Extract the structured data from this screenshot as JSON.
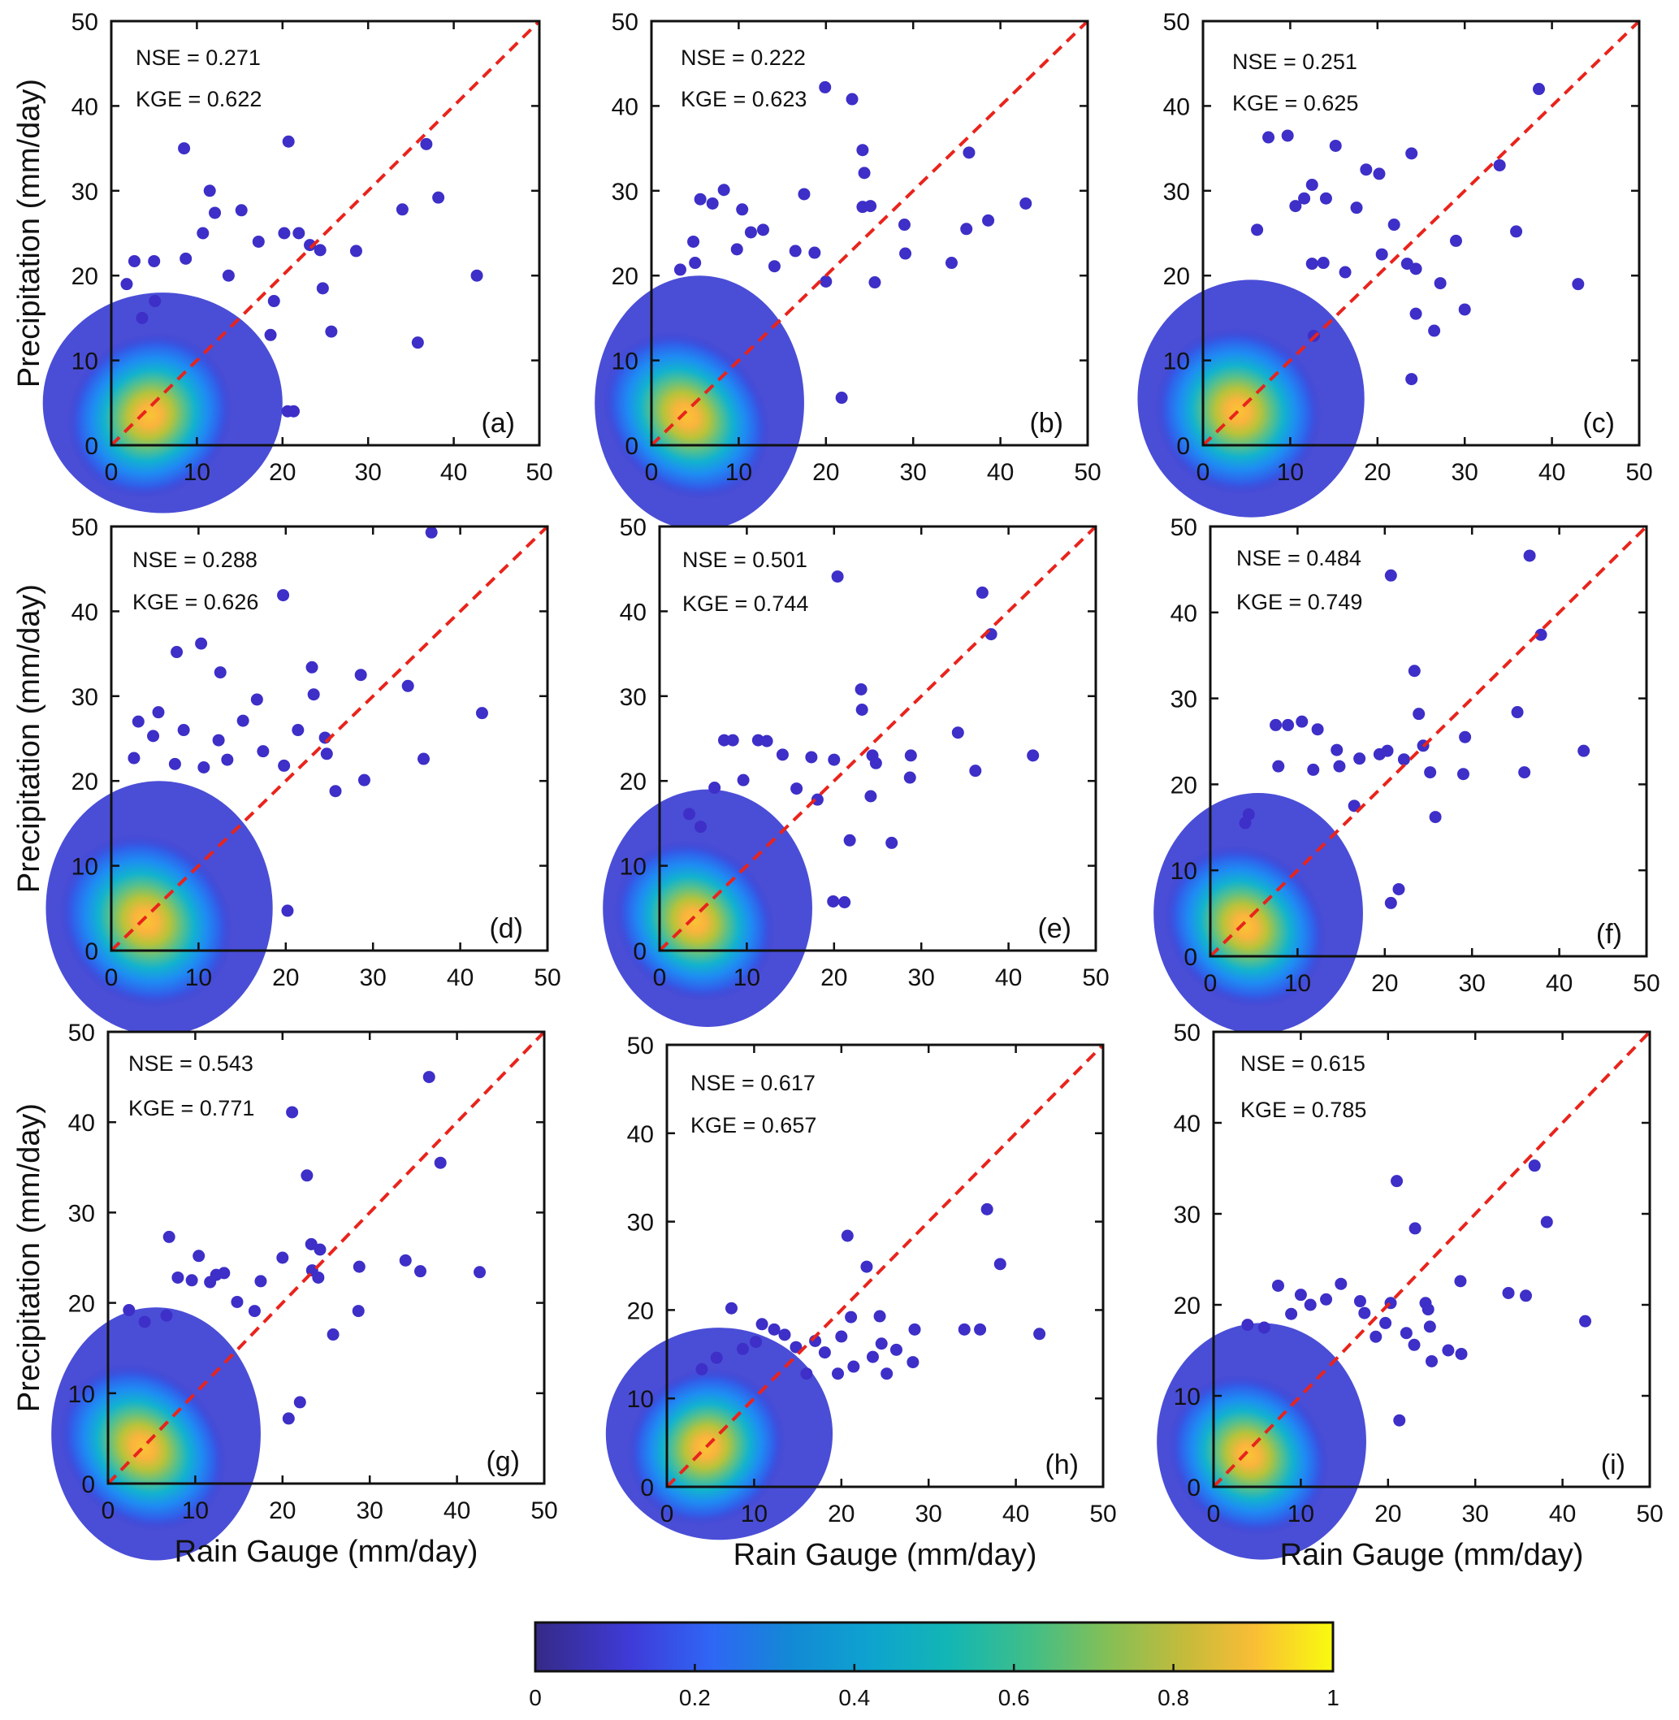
{
  "figure": {
    "shared": {
      "xlabel": "Rain Gauge (mm/day)",
      "ylabel": "Precipitation (mm/day)",
      "xlim": [
        0,
        50
      ],
      "ylim": [
        0,
        50
      ],
      "ticks": [
        0,
        10,
        20,
        30,
        40,
        50
      ],
      "reference_line": "1:1 line",
      "colors": {
        "reference_line": "#e8241c",
        "axes": "#111111",
        "low_density": "#3d2fc7"
      }
    },
    "colorbar": {
      "ticks": [
        "0",
        "0.2",
        "0.4",
        "0.6",
        "0.8",
        "1"
      ],
      "colormap": "parula"
    }
  },
  "chart_data": [
    {
      "type": "scatter",
      "panel": "(a)",
      "nse_label": "NSE = 0.271",
      "kge_label": "KGE = 0.622",
      "xlim": [
        0,
        50
      ],
      "ylim": [
        0,
        50
      ],
      "points": [
        [
          8.5,
          35
        ],
        [
          20.7,
          35.8
        ],
        [
          36.8,
          35.5
        ],
        [
          34,
          27.8
        ],
        [
          38.2,
          29.2
        ],
        [
          42.7,
          20
        ],
        [
          35.8,
          12.1
        ],
        [
          11.5,
          30
        ],
        [
          12.1,
          27.4
        ],
        [
          15.2,
          27.7
        ],
        [
          10.7,
          25
        ],
        [
          17.2,
          24
        ],
        [
          20.2,
          25
        ],
        [
          21.9,
          25
        ],
        [
          23.2,
          23.6
        ],
        [
          24.4,
          23
        ],
        [
          28.6,
          22.9
        ],
        [
          24.7,
          18.5
        ],
        [
          25.7,
          13.4
        ],
        [
          20.6,
          4
        ],
        [
          21.3,
          4
        ],
        [
          2.7,
          21.7
        ],
        [
          1.8,
          19
        ],
        [
          5,
          21.7
        ],
        [
          8.7,
          22
        ],
        [
          3.6,
          15
        ],
        [
          5.1,
          17
        ],
        [
          13.7,
          20
        ],
        [
          19,
          17
        ],
        [
          18.6,
          13
        ]
      ]
    },
    {
      "type": "scatter",
      "panel": "(b)",
      "nse_label": "NSE = 0.222",
      "kge_label": "KGE = 0.623",
      "xlim": [
        0,
        50
      ],
      "ylim": [
        0,
        50
      ],
      "points": [
        [
          19.9,
          42.2
        ],
        [
          23,
          40.8
        ],
        [
          24.2,
          34.8
        ],
        [
          36.4,
          34.5
        ],
        [
          24.4,
          32.1
        ],
        [
          17.5,
          29.6
        ],
        [
          8.3,
          30.1
        ],
        [
          5.6,
          29
        ],
        [
          7,
          28.5
        ],
        [
          24.2,
          28.1
        ],
        [
          25.1,
          28.2
        ],
        [
          38.6,
          26.5
        ],
        [
          42.9,
          28.5
        ],
        [
          29,
          26
        ],
        [
          36.1,
          25.5
        ],
        [
          34.4,
          21.5
        ],
        [
          29.1,
          22.6
        ],
        [
          25.6,
          19.2
        ],
        [
          21.8,
          5.6
        ],
        [
          20,
          19.3
        ],
        [
          9.8,
          23.1
        ],
        [
          12.8,
          25.4
        ],
        [
          16.5,
          22.9
        ],
        [
          18.7,
          22.7
        ],
        [
          14.1,
          21.1
        ],
        [
          3.3,
          20.7
        ],
        [
          5,
          21.5
        ],
        [
          4.8,
          24
        ],
        [
          10.4,
          27.8
        ],
        [
          11.4,
          25.1
        ]
      ]
    },
    {
      "type": "scatter",
      "panel": "(c)",
      "nse_label": "NSE = 0.251",
      "kge_label": "KGE = 0.625",
      "xlim": [
        0,
        50
      ],
      "ylim": [
        0,
        50
      ],
      "points": [
        [
          38.5,
          42
        ],
        [
          9.7,
          36.5
        ],
        [
          7.5,
          36.3
        ],
        [
          34,
          33
        ],
        [
          18.7,
          32.5
        ],
        [
          20.2,
          32
        ],
        [
          23.9,
          34.4
        ],
        [
          15.2,
          35.3
        ],
        [
          10.6,
          28.2
        ],
        [
          11.6,
          29.1
        ],
        [
          12.5,
          30.7
        ],
        [
          14.1,
          29.1
        ],
        [
          17.6,
          28
        ],
        [
          21.9,
          26
        ],
        [
          29,
          24.1
        ],
        [
          23.4,
          21.4
        ],
        [
          30,
          16
        ],
        [
          35.9,
          25.2
        ],
        [
          43,
          19
        ],
        [
          26.5,
          13.5
        ],
        [
          24.4,
          15.5
        ],
        [
          24.4,
          20.8
        ],
        [
          20.5,
          22.5
        ],
        [
          13.8,
          21.5
        ],
        [
          6.2,
          25.4
        ],
        [
          16.3,
          20.4
        ],
        [
          27.2,
          19.1
        ],
        [
          12.7,
          12.9
        ],
        [
          23.9,
          7.8
        ],
        [
          12.5,
          21.4
        ]
      ]
    },
    {
      "type": "scatter",
      "panel": "(d)",
      "nse_label": "NSE = 0.288",
      "kge_label": "KGE = 0.626",
      "xlim": [
        0,
        50
      ],
      "ylim": [
        0,
        50
      ],
      "points": [
        [
          36.7,
          49.3
        ],
        [
          19.7,
          41.9
        ],
        [
          10.3,
          36.2
        ],
        [
          7.5,
          35.2
        ],
        [
          12.5,
          32.8
        ],
        [
          23,
          33.4
        ],
        [
          28.6,
          32.5
        ],
        [
          34,
          31.2
        ],
        [
          23.2,
          30.2
        ],
        [
          15.1,
          27.1
        ],
        [
          16.7,
          29.6
        ],
        [
          3.1,
          27
        ],
        [
          5.4,
          28.1
        ],
        [
          42.5,
          28
        ],
        [
          24.5,
          25.1
        ],
        [
          24.7,
          23.2
        ],
        [
          35.8,
          22.6
        ],
        [
          29,
          20.1
        ],
        [
          25.7,
          18.8
        ],
        [
          20.2,
          4.7
        ],
        [
          2.6,
          22.7
        ],
        [
          4.8,
          25.3
        ],
        [
          8.3,
          26
        ],
        [
          12.3,
          24.8
        ],
        [
          21.4,
          26
        ],
        [
          19.8,
          21.8
        ],
        [
          17.4,
          23.5
        ],
        [
          13.3,
          22.5
        ],
        [
          7.3,
          22
        ],
        [
          10.6,
          21.6
        ]
      ]
    },
    {
      "type": "scatter",
      "panel": "(e)",
      "nse_label": "NSE = 0.501",
      "kge_label": "KGE = 0.744",
      "xlim": [
        0,
        50
      ],
      "ylim": [
        0,
        50
      ],
      "points": [
        [
          20.4,
          44.1
        ],
        [
          37,
          42.2
        ],
        [
          38,
          37.3
        ],
        [
          23.1,
          30.8
        ],
        [
          23.2,
          28.4
        ],
        [
          34.2,
          25.7
        ],
        [
          7.4,
          24.8
        ],
        [
          8.4,
          24.8
        ],
        [
          11.3,
          24.8
        ],
        [
          12.3,
          24.7
        ],
        [
          28.8,
          23
        ],
        [
          42.8,
          23
        ],
        [
          36.2,
          21.2
        ],
        [
          24.4,
          23
        ],
        [
          24.8,
          22.1
        ],
        [
          28.7,
          20.4
        ],
        [
          24.2,
          18.2
        ],
        [
          26.6,
          12.7
        ],
        [
          19.9,
          5.8
        ],
        [
          21.2,
          5.7
        ],
        [
          17.4,
          22.8
        ],
        [
          20,
          22.5
        ],
        [
          14.1,
          23.1
        ],
        [
          9.6,
          20.1
        ],
        [
          6.3,
          19.2
        ],
        [
          3.4,
          16.1
        ],
        [
          4.7,
          14.6
        ],
        [
          18.1,
          17.8
        ],
        [
          15.7,
          19.1
        ],
        [
          21.8,
          13
        ]
      ]
    },
    {
      "type": "scatter",
      "panel": "(f)",
      "nse_label": "NSE = 0.484",
      "kge_label": "KGE = 0.749",
      "xlim": [
        0,
        50
      ],
      "ylim": [
        0,
        50
      ],
      "points": [
        [
          20.7,
          44.3
        ],
        [
          36.6,
          46.6
        ],
        [
          37.9,
          37.4
        ],
        [
          23.4,
          33.2
        ],
        [
          35.2,
          28.4
        ],
        [
          7.5,
          26.9
        ],
        [
          8.9,
          26.9
        ],
        [
          10.5,
          27.3
        ],
        [
          12.3,
          26.4
        ],
        [
          23.9,
          28.2
        ],
        [
          29.2,
          25.5
        ],
        [
          36,
          21.4
        ],
        [
          42.8,
          23.9
        ],
        [
          29,
          21.2
        ],
        [
          25.2,
          21.4
        ],
        [
          25.8,
          16.2
        ],
        [
          20.7,
          6.2
        ],
        [
          21.6,
          7.8
        ],
        [
          19.4,
          23.5
        ],
        [
          20.3,
          23.9
        ],
        [
          17.1,
          23
        ],
        [
          14.5,
          24
        ],
        [
          7.8,
          22.1
        ],
        [
          4.4,
          16.5
        ],
        [
          4,
          15.5
        ],
        [
          14.8,
          22.1
        ],
        [
          11.8,
          21.7
        ],
        [
          24.4,
          24.5
        ],
        [
          22.2,
          22.9
        ],
        [
          16.5,
          17.5
        ]
      ]
    },
    {
      "type": "scatter",
      "panel": "(g)",
      "nse_label": "NSE = 0.543",
      "kge_label": "KGE = 0.771",
      "xlim": [
        0,
        50
      ],
      "ylim": [
        0,
        50
      ],
      "points": [
        [
          36.8,
          45
        ],
        [
          21.1,
          41.1
        ],
        [
          38.1,
          35.5
        ],
        [
          22.8,
          34.1
        ],
        [
          7,
          27.3
        ],
        [
          10.4,
          25.2
        ],
        [
          23.3,
          26.5
        ],
        [
          24.3,
          25.9
        ],
        [
          34.1,
          24.7
        ],
        [
          35.8,
          23.5
        ],
        [
          42.6,
          23.4
        ],
        [
          28.8,
          24
        ],
        [
          28.7,
          19.1
        ],
        [
          25.8,
          16.5
        ],
        [
          20.7,
          7.2
        ],
        [
          22,
          9
        ],
        [
          20,
          25
        ],
        [
          23.4,
          23.6
        ],
        [
          24.1,
          22.8
        ],
        [
          8,
          22.8
        ],
        [
          9.6,
          22.5
        ],
        [
          11.7,
          22.3
        ],
        [
          12.4,
          23.1
        ],
        [
          13.3,
          23.3
        ],
        [
          14.8,
          20.1
        ],
        [
          17.5,
          22.4
        ],
        [
          2.4,
          19.2
        ],
        [
          4.2,
          17.9
        ],
        [
          6.7,
          18.6
        ],
        [
          16.8,
          19.1
        ]
      ]
    },
    {
      "type": "scatter",
      "panel": "(h)",
      "nse_label": "NSE = 0.617",
      "kge_label": "KGE = 0.657",
      "xlim": [
        0,
        50
      ],
      "ylim": [
        0,
        50
      ],
      "points": [
        [
          36.7,
          31.4
        ],
        [
          20.7,
          28.4
        ],
        [
          38.2,
          25.2
        ],
        [
          22.9,
          24.9
        ],
        [
          24.4,
          19.3
        ],
        [
          34.1,
          17.8
        ],
        [
          35.9,
          17.8
        ],
        [
          28.4,
          17.8
        ],
        [
          42.7,
          17.3
        ],
        [
          28.2,
          14.1
        ],
        [
          25.2,
          12.8
        ],
        [
          7.4,
          20.2
        ],
        [
          10.9,
          18.4
        ],
        [
          12.3,
          17.8
        ],
        [
          13.5,
          17.2
        ],
        [
          21.1,
          19.2
        ],
        [
          18.1,
          15.2
        ],
        [
          20,
          17
        ],
        [
          17,
          16.5
        ],
        [
          24.6,
          16.2
        ],
        [
          26.3,
          15.5
        ],
        [
          14.8,
          15.8
        ],
        [
          8.7,
          15.6
        ],
        [
          10.2,
          16.4
        ],
        [
          5.7,
          14.6
        ],
        [
          23.6,
          14.7
        ],
        [
          19.6,
          12.8
        ],
        [
          16,
          12.8
        ],
        [
          21.4,
          13.6
        ],
        [
          4,
          13.3
        ]
      ]
    },
    {
      "type": "scatter",
      "panel": "(i)",
      "nse_label": "NSE = 0.615",
      "kge_label": "KGE = 0.785",
      "xlim": [
        0,
        50
      ],
      "ylim": [
        0,
        50
      ],
      "points": [
        [
          36.8,
          35.3
        ],
        [
          21,
          33.6
        ],
        [
          38.2,
          29.1
        ],
        [
          23.1,
          28.4
        ],
        [
          28.3,
          22.6
        ],
        [
          33.8,
          21.3
        ],
        [
          35.8,
          21
        ],
        [
          20.3,
          20.2
        ],
        [
          24.3,
          20.2
        ],
        [
          24.6,
          19.5
        ],
        [
          26.9,
          15
        ],
        [
          28.4,
          14.6
        ],
        [
          42.6,
          18.2
        ],
        [
          21.3,
          7.3
        ],
        [
          7.4,
          22.1
        ],
        [
          14.6,
          22.3
        ],
        [
          10,
          21.1
        ],
        [
          12.9,
          20.6
        ],
        [
          16.8,
          20.4
        ],
        [
          17.3,
          19.1
        ],
        [
          19.7,
          18
        ],
        [
          22.1,
          16.9
        ],
        [
          24.8,
          17.6
        ],
        [
          25,
          13.8
        ],
        [
          3.9,
          17.8
        ],
        [
          5.8,
          17.5
        ],
        [
          8.9,
          19
        ],
        [
          11.1,
          20
        ],
        [
          18.6,
          16.5
        ],
        [
          23,
          15.6
        ]
      ]
    }
  ]
}
